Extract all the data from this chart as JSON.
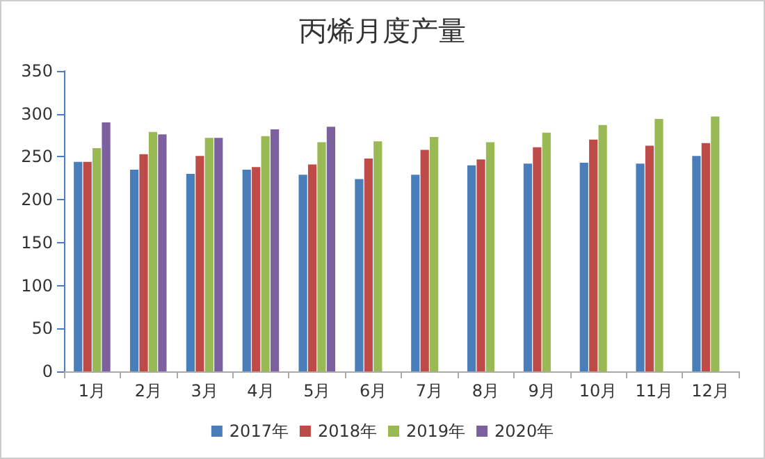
{
  "chart_data": {
    "type": "bar",
    "title": "丙烯月度产量",
    "categories": [
      "1月",
      "2月",
      "3月",
      "4月",
      "5月",
      "6月",
      "7月",
      "8月",
      "9月",
      "10月",
      "11月",
      "12月"
    ],
    "series": [
      {
        "name": "2017年",
        "color": "#4a7ebb",
        "values": [
          244,
          235,
          230,
          235,
          229,
          224,
          229,
          240,
          242,
          243,
          242,
          251
        ]
      },
      {
        "name": "2018年",
        "color": "#be4b48",
        "values": [
          244,
          253,
          251,
          238,
          241,
          248,
          258,
          247,
          261,
          270,
          263,
          266
        ]
      },
      {
        "name": "2019年",
        "color": "#98b954",
        "values": [
          260,
          279,
          272,
          274,
          267,
          268,
          273,
          267,
          278,
          287,
          294,
          297
        ]
      },
      {
        "name": "2020年",
        "color": "#7d60a0",
        "values": [
          290,
          276,
          272,
          282,
          285,
          null,
          null,
          null,
          null,
          null,
          null,
          null
        ]
      }
    ],
    "ylim": [
      0,
      350
    ],
    "yticks": [
      0,
      50,
      100,
      150,
      200,
      250,
      300,
      350
    ],
    "grid": false,
    "legend": "bottom"
  }
}
